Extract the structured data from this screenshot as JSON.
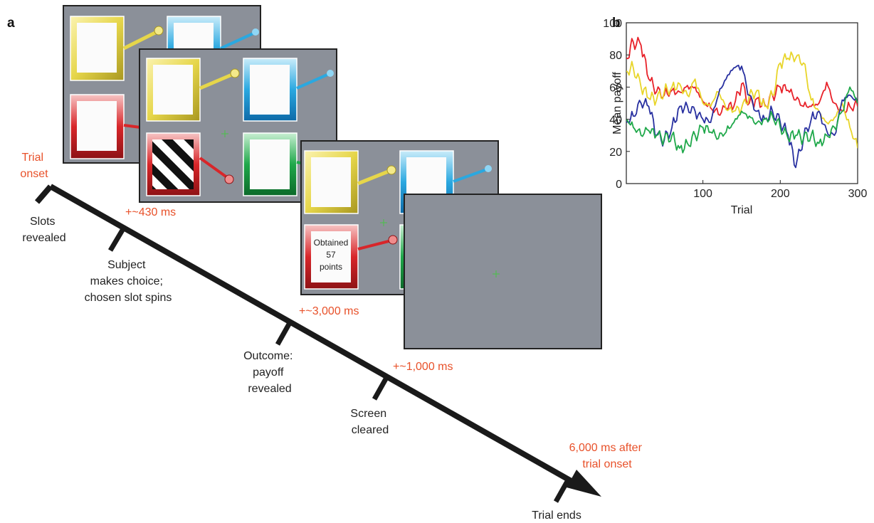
{
  "panel_a": {
    "letter": "a",
    "events": {
      "trial_onset": [
        "Trial",
        "onset"
      ],
      "slots_revealed": [
        "Slots",
        "revealed"
      ],
      "choice": [
        "Subject",
        "makes choice;",
        "chosen slot spins"
      ],
      "outcome": [
        "Outcome:",
        "payoff",
        "revealed"
      ],
      "cleared": [
        "Screen",
        "cleared"
      ],
      "trial_ends": [
        "Trial ends"
      ]
    },
    "timings": {
      "t430": "+~430 ms",
      "t3000": "+~3,000 ms",
      "t1000": "+~1,000 ms",
      "t6000": [
        "6,000 ms after",
        "trial onset"
      ]
    },
    "outcome_text": [
      "Obtained",
      "57",
      "points"
    ],
    "colors": {
      "timing_text": "#e8512a",
      "screen_bg": "#8b9099",
      "slot_yellow": "#e6d64a",
      "slot_blue": "#2aa8e0",
      "slot_red": "#d8262a",
      "slot_green": "#1fa84a",
      "fixation": "#48c248"
    }
  },
  "panel_b": {
    "letter": "b"
  },
  "chart_data": {
    "type": "line",
    "title": "",
    "xlabel": "Trial",
    "ylabel": "Mean payoff",
    "xlim": [
      1,
      300
    ],
    "ylim": [
      0,
      100
    ],
    "xticks": [
      100,
      200,
      300
    ],
    "yticks": [
      0,
      20,
      40,
      60,
      80,
      100
    ],
    "grid": false,
    "legend": "none",
    "x": [
      1,
      10,
      20,
      30,
      40,
      50,
      60,
      70,
      80,
      90,
      100,
      110,
      120,
      130,
      140,
      150,
      160,
      170,
      180,
      190,
      200,
      210,
      220,
      230,
      240,
      250,
      260,
      270,
      280,
      290,
      300
    ],
    "series": [
      {
        "color": "#e8222a",
        "values": [
          78,
          88,
          86,
          65,
          57,
          55,
          58,
          57,
          61,
          60,
          51,
          47,
          43,
          47,
          48,
          62,
          50,
          53,
          49,
          55,
          60,
          58,
          52,
          48,
          48,
          50,
          63,
          50,
          45,
          48,
          48
        ]
      },
      {
        "color": "#e8d52a",
        "values": [
          70,
          72,
          60,
          53,
          52,
          57,
          60,
          62,
          55,
          65,
          50,
          48,
          57,
          46,
          45,
          47,
          55,
          58,
          48,
          55,
          75,
          78,
          78,
          75,
          52,
          45,
          38,
          41,
          50,
          35,
          22
        ]
      },
      {
        "color": "#2830a0",
        "values": [
          38,
          42,
          50,
          48,
          30,
          27,
          35,
          48,
          48,
          45,
          40,
          38,
          55,
          65,
          72,
          73,
          55,
          45,
          40,
          45,
          38,
          30,
          10,
          28,
          40,
          45,
          33,
          30,
          52,
          55,
          50
        ]
      },
      {
        "color": "#1fa84a",
        "values": [
          40,
          35,
          30,
          33,
          30,
          28,
          30,
          22,
          25,
          30,
          35,
          32,
          28,
          32,
          38,
          45,
          42,
          38,
          40,
          42,
          35,
          28,
          30,
          28,
          30,
          25,
          30,
          35,
          45,
          60,
          50
        ]
      }
    ]
  }
}
